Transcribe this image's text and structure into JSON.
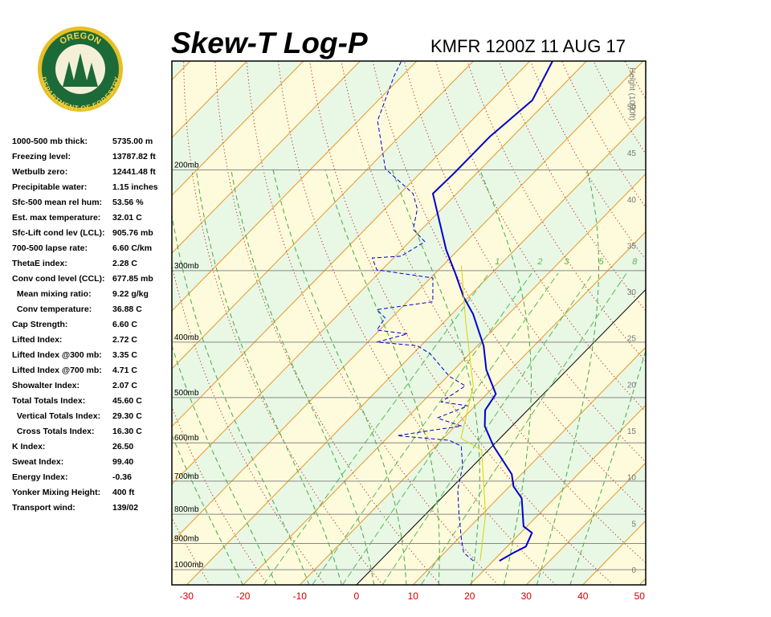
{
  "logo": {
    "top_text": "OREGON",
    "bottom_text": "DEPARTMENT OF FORESTRY"
  },
  "indices": [
    {
      "label": "1000-500 mb thick:",
      "value": "5735.00 m"
    },
    {
      "label": "Freezing level:",
      "value": "13787.82 ft"
    },
    {
      "label": "Wetbulb zero:",
      "value": "12441.48 ft"
    },
    {
      "label": "Precipitable water:",
      "value": "1.15 inches"
    },
    {
      "label": "Sfc-500 mean rel hum:",
      "value": "53.56 %"
    },
    {
      "label": "Est. max temperature:",
      "value": "32.01 C"
    },
    {
      "label": "Sfc-Lift cond lev (LCL):",
      "value": "905.76 mb"
    },
    {
      "label": "700-500 lapse rate:",
      "value": "6.60 C/km"
    },
    {
      "label": "ThetaE index:",
      "value": "2.28 C"
    },
    {
      "label": "Conv cond level (CCL):",
      "value": "677.85 mb"
    },
    {
      "label": "  Mean mixing ratio:",
      "value": "9.22 g/kg"
    },
    {
      "label": "  Conv temperature:",
      "value": "36.88 C"
    },
    {
      "label": "Cap Strength:",
      "value": "6.60 C"
    },
    {
      "label": "Lifted Index:",
      "value": "2.72 C"
    },
    {
      "label": "Lifted Index @300 mb:",
      "value": "3.35 C"
    },
    {
      "label": "Lifted Index @700 mb:",
      "value": "4.71 C"
    },
    {
      "label": "Showalter Index:",
      "value": "2.07 C"
    },
    {
      "label": "Total Totals Index:",
      "value": "45.60 C"
    },
    {
      "label": "  Vertical Totals Index:",
      "value": "29.30 C"
    },
    {
      "label": "  Cross Totals Index:",
      "value": "16.30 C"
    },
    {
      "label": "K Index:",
      "value": "26.50"
    },
    {
      "label": "Sweat Index:",
      "value": "99.40"
    },
    {
      "label": "Energy Index:",
      "value": "-0.36"
    },
    {
      "label": "Yonker Mixing Height:",
      "value": "400 ft"
    },
    {
      "label": "Transport wind:",
      "value": "139/02"
    }
  ],
  "chart_data": {
    "type": "skewt",
    "title": "Skew-T Log-P",
    "subtitle": "KMFR 1200Z 11 AUG 17",
    "y2label": "Height (1000ft)",
    "xlim": [
      -32.6,
      51.1
    ],
    "xticks": [
      -30,
      -20,
      -10,
      0,
      10,
      20,
      30,
      40,
      50
    ],
    "ylim": [
      1063,
      129
    ],
    "log_y": true,
    "yticks": [
      {
        "value": 1000,
        "label": "1000mb"
      },
      {
        "value": 900,
        "label": "900mb"
      },
      {
        "value": 800,
        "label": "800mb"
      },
      {
        "value": 700,
        "label": "700mb"
      },
      {
        "value": 600,
        "label": "600mb"
      },
      {
        "value": 500,
        "label": "500mb"
      },
      {
        "value": 400,
        "label": "400mb"
      },
      {
        "value": 300,
        "label": "300mb"
      },
      {
        "value": 200,
        "label": "200mb"
      }
    ],
    "y2lim": [
      -1.65,
      54.9
    ],
    "y2ticks": [
      0,
      5,
      10,
      15,
      20,
      25,
      30,
      35,
      40,
      45,
      50
    ],
    "mixing_ratios": [
      1,
      2,
      3,
      5,
      8
    ],
    "series": [
      {
        "color": "#0000cc",
        "style": "solid",
        "width": 2,
        "x": [
          21.1,
          22.2,
          23.3,
          22.0,
          19.4,
          14.2,
          10.7,
          8.3,
          0.2,
          -4.8,
          -7.5,
          -8.4,
          -14.3,
          -18.9,
          -26.3,
          -30.8,
          -36.3,
          -42.1,
          -54.2,
          -54.0,
          -54.0,
          -52.8,
          -56
        ],
        "values": [
          965,
          934,
          911,
          862,
          840,
          750,
          715,
          681,
          608,
          561,
          526,
          493,
          447,
          406,
          357,
          334,
          304,
          276,
          220,
          203,
          175,
          151,
          129
        ]
      },
      {
        "color": "#0000cc",
        "style": "dashed",
        "width": 1,
        "x": [
          16.5,
          13.4,
          10.5,
          5.9,
          1.5,
          -1.8,
          -5.5,
          -8.6,
          -18.6,
          -13.2,
          -8.9,
          -14.6,
          -11.3,
          -16.7,
          -15.2,
          -19.7,
          -27,
          -30.6,
          -38.4,
          -34.4,
          -40.5,
          -41.1,
          -44,
          -35.5,
          -39.6,
          -50.9,
          -53.8,
          -49,
          -47.3,
          -51.5,
          -54.3,
          -57.7,
          -66.9,
          -76.6,
          -81.4,
          -82.7
        ],
        "values": [
          965,
          934,
          882,
          800,
          726,
          659,
          608,
          594,
          583,
          570,
          561,
          543,
          517,
          509,
          477,
          459,
          419,
          406,
          400,
          387,
          381,
          363,
          351,
          340,
          309,
          299,
          285,
          283,
          267,
          254,
          234,
          220,
          199,
          164,
          137,
          129
        ]
      },
      {
        "color": "#e0d000",
        "style": "solid",
        "width": 1,
        "x": [
          17.7,
          10.6,
          -1.2,
          -6.9,
          -13.8,
          -26.3,
          -36.7
        ],
        "values": [
          965,
          800,
          618,
          589,
          477,
          368,
          294
        ]
      }
    ]
  }
}
